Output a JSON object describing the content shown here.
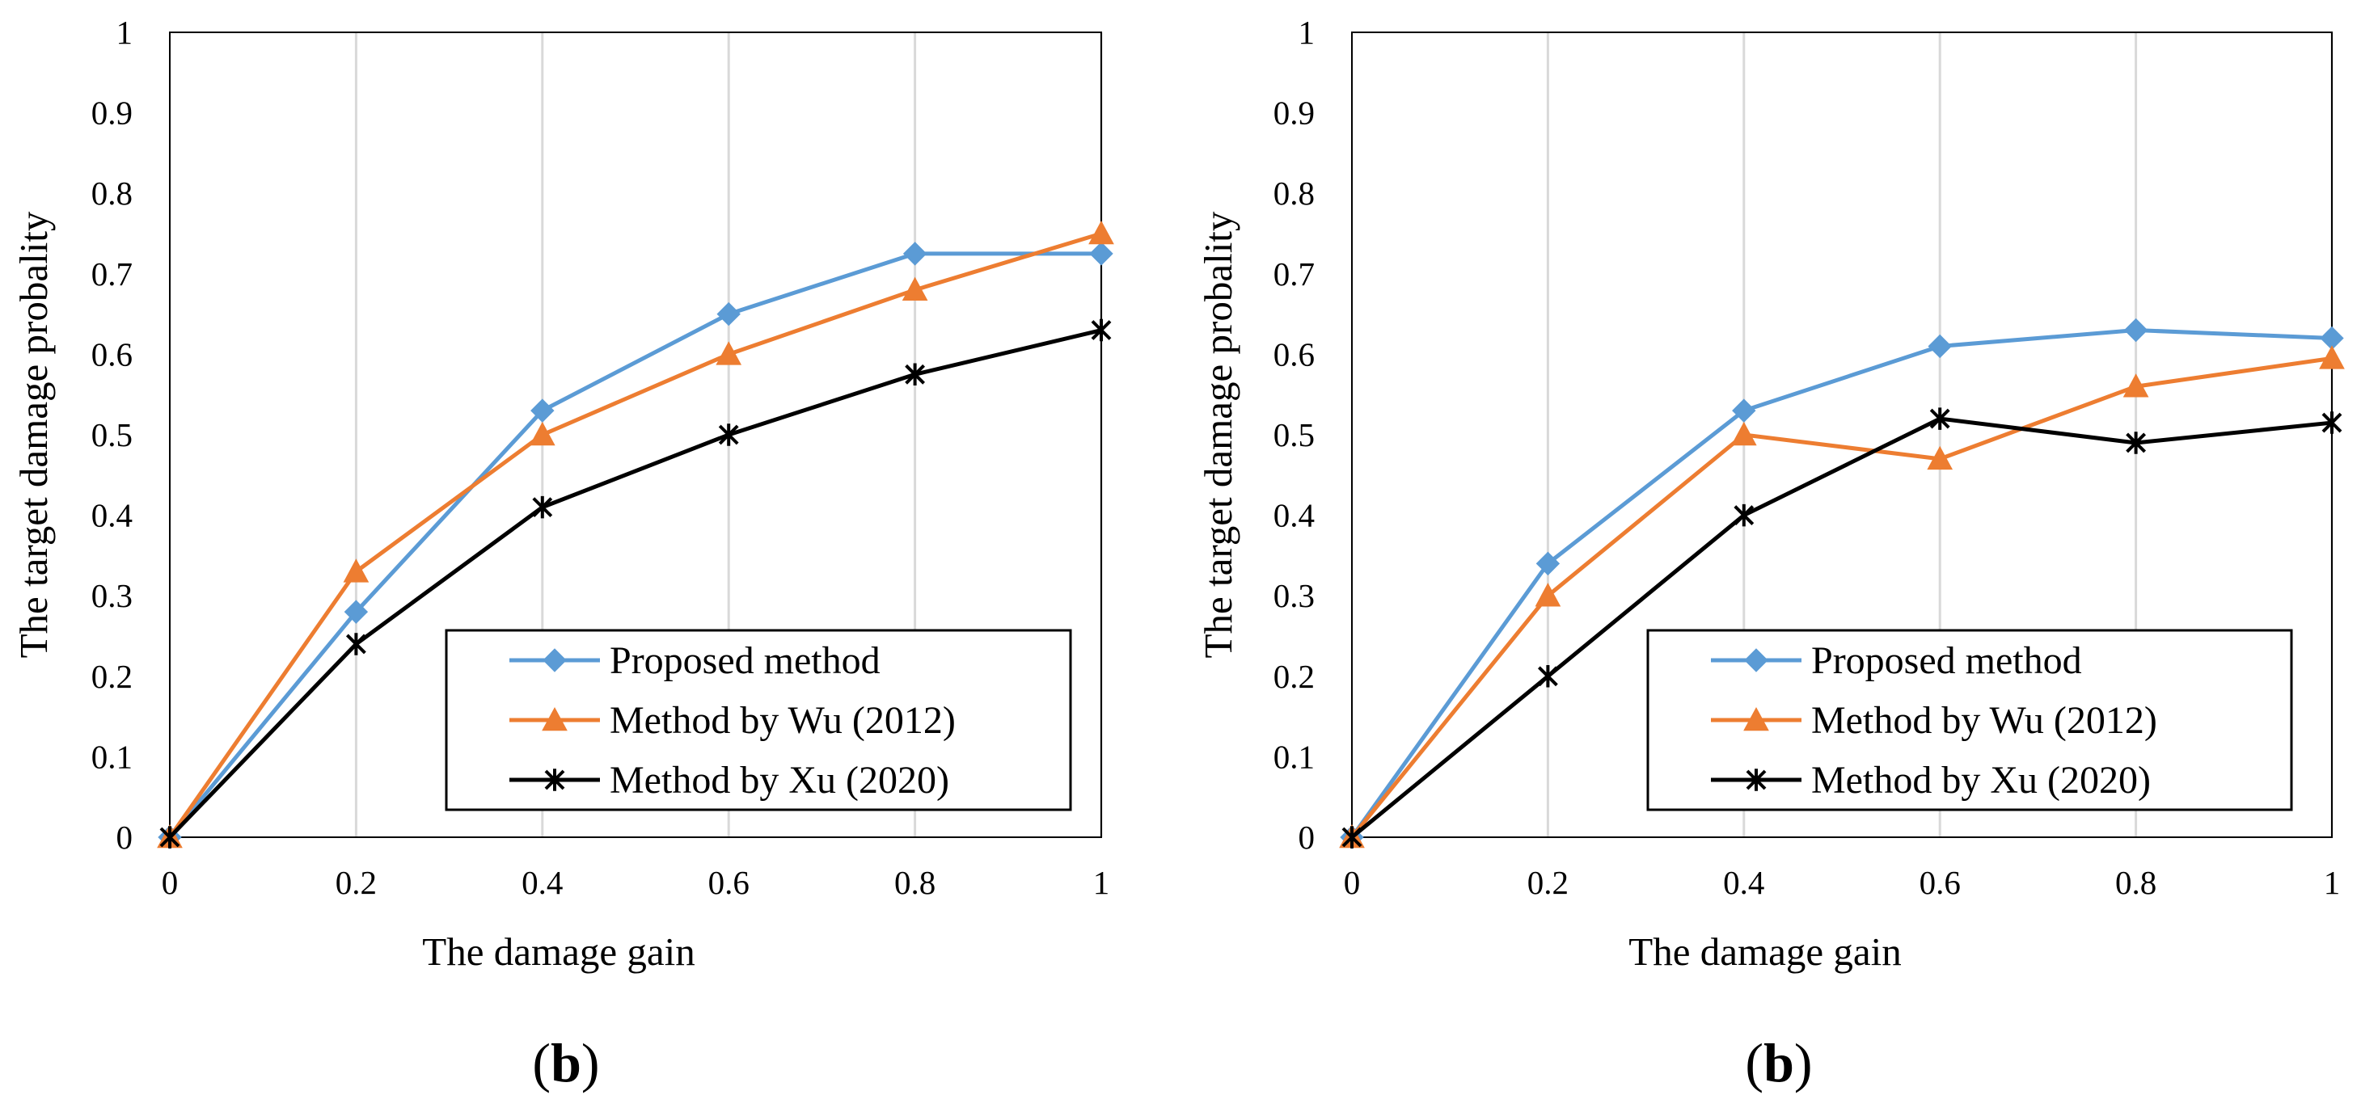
{
  "chart_data": [
    {
      "type": "line",
      "panel_label": "b",
      "xlabel": "The damage gain",
      "ylabel": "The target damage probality",
      "x": [
        0,
        0.2,
        0.4,
        0.6,
        0.8,
        1
      ],
      "x_tick_labels": [
        "0",
        "0.2",
        "0.4",
        "0.6",
        "0.8",
        "1"
      ],
      "y_tick_labels": [
        "0",
        "0.1",
        "0.2",
        "0.3",
        "0.4",
        "0.5",
        "0.6",
        "0.7",
        "0.8",
        "0.9",
        "1"
      ],
      "xlim": [
        0,
        1
      ],
      "ylim": [
        0,
        1
      ],
      "grid": "vertical",
      "legend": "bottom-right",
      "series": [
        {
          "name": "Proposed method",
          "values": [
            0,
            0.28,
            0.53,
            0.65,
            0.725,
            0.725
          ],
          "color": "#5b9bd5",
          "marker": "diamond"
        },
        {
          "name": "Method by Wu (2012)",
          "values": [
            0,
            0.33,
            0.5,
            0.6,
            0.68,
            0.75
          ],
          "color": "#ed7d31",
          "marker": "triangle"
        },
        {
          "name": "Method by Xu (2020)",
          "values": [
            0,
            0.24,
            0.41,
            0.5,
            0.575,
            0.63
          ],
          "color": "#000000",
          "marker": "star"
        }
      ]
    },
    {
      "type": "line",
      "panel_label": "b",
      "xlabel": "The damage gain",
      "ylabel": "The target damage probality",
      "x": [
        0,
        0.2,
        0.4,
        0.6,
        0.8,
        1
      ],
      "x_tick_labels": [
        "0",
        "0.2",
        "0.4",
        "0.6",
        "0.8",
        "1"
      ],
      "y_tick_labels": [
        "0",
        "0.1",
        "0.2",
        "0.3",
        "0.4",
        "0.5",
        "0.6",
        "0.7",
        "0.8",
        "0.9",
        "1"
      ],
      "xlim": [
        0,
        1
      ],
      "ylim": [
        0,
        1
      ],
      "grid": "vertical",
      "legend": "bottom-right",
      "series": [
        {
          "name": "Proposed method",
          "values": [
            0,
            0.34,
            0.53,
            0.61,
            0.63,
            0.62
          ],
          "color": "#5b9bd5",
          "marker": "diamond"
        },
        {
          "name": "Method by Wu (2012)",
          "values": [
            0,
            0.3,
            0.5,
            0.47,
            0.56,
            0.595
          ],
          "color": "#ed7d31",
          "marker": "triangle"
        },
        {
          "name": "Method by Xu (2020)",
          "values": [
            0,
            0.2,
            0.4,
            0.52,
            0.49,
            0.515
          ],
          "color": "#000000",
          "marker": "star"
        }
      ]
    }
  ]
}
